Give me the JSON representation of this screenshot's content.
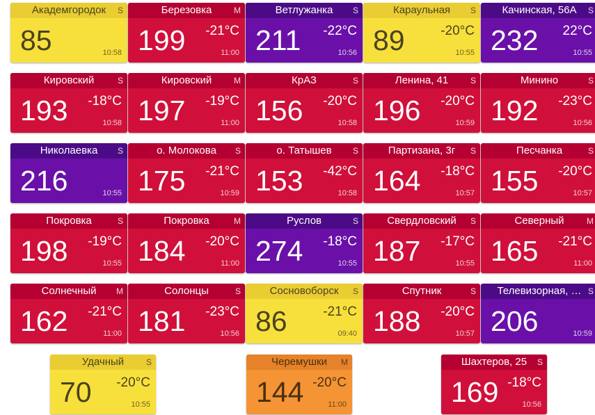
{
  "tiles": [
    {
      "name": "Академгородок",
      "badge": "S",
      "aqi": 85,
      "temp": null,
      "time": "10:58",
      "color": "yellow"
    },
    {
      "name": "Березовка",
      "badge": "M",
      "aqi": 199,
      "temp": "-21°C",
      "time": "11:00",
      "color": "red"
    },
    {
      "name": "Ветлужанка",
      "badge": "S",
      "aqi": 211,
      "temp": "-22°C",
      "time": "10:56",
      "color": "purple"
    },
    {
      "name": "Караульная",
      "badge": "S",
      "aqi": 89,
      "temp": "-20°C",
      "time": "10:55",
      "color": "yellow"
    },
    {
      "name": "Качинская, 56А",
      "badge": "S",
      "aqi": 232,
      "temp": "22°C",
      "time": "10:55",
      "color": "purple"
    },
    {
      "name": "Кировский",
      "badge": "S",
      "aqi": 193,
      "temp": "-18°C",
      "time": "10:58",
      "color": "red"
    },
    {
      "name": "Кировский",
      "badge": "M",
      "aqi": 197,
      "temp": "-19°C",
      "time": "11:00",
      "color": "red"
    },
    {
      "name": "КрАЗ",
      "badge": "S",
      "aqi": 156,
      "temp": "-20°C",
      "time": "10:58",
      "color": "red"
    },
    {
      "name": "Ленина, 41",
      "badge": "S",
      "aqi": 196,
      "temp": "-20°C",
      "time": "10:59",
      "color": "red"
    },
    {
      "name": "Минино",
      "badge": "S",
      "aqi": 192,
      "temp": "-23°C",
      "time": "10:56",
      "color": "red"
    },
    {
      "name": "Николаевка",
      "badge": "S",
      "aqi": 216,
      "temp": null,
      "time": "10:55",
      "color": "purple"
    },
    {
      "name": "о. Молокова",
      "badge": "S",
      "aqi": 175,
      "temp": "-21°C",
      "time": "10:59",
      "color": "red"
    },
    {
      "name": "о. Татышев",
      "badge": "S",
      "aqi": 153,
      "temp": "-42°C",
      "time": "10:58",
      "color": "red"
    },
    {
      "name": "Партизана, 3г",
      "badge": "S",
      "aqi": 164,
      "temp": "-18°C",
      "time": "10:57",
      "color": "red"
    },
    {
      "name": "Песчанка",
      "badge": "S",
      "aqi": 155,
      "temp": "-20°C",
      "time": "10:57",
      "color": "red"
    },
    {
      "name": "Покровка",
      "badge": "S",
      "aqi": 198,
      "temp": "-19°C",
      "time": "10:55",
      "color": "red"
    },
    {
      "name": "Покровка",
      "badge": "M",
      "aqi": 184,
      "temp": "-20°C",
      "time": "11:00",
      "color": "red"
    },
    {
      "name": "Руслов",
      "badge": "S",
      "aqi": 274,
      "temp": "-18°C",
      "time": "10:55",
      "color": "purple"
    },
    {
      "name": "Свердловский",
      "badge": "S",
      "aqi": 187,
      "temp": "-17°C",
      "time": "10:55",
      "color": "red"
    },
    {
      "name": "Северный",
      "badge": "M",
      "aqi": 165,
      "temp": "-21°C",
      "time": "11:00",
      "color": "red"
    },
    {
      "name": "Солнечный",
      "badge": "M",
      "aqi": 162,
      "temp": "-21°C",
      "time": "11:00",
      "color": "red"
    },
    {
      "name": "Солонцы",
      "badge": "S",
      "aqi": 181,
      "temp": "-23°C",
      "time": "10:56",
      "color": "red"
    },
    {
      "name": "Сосновоборск",
      "badge": "S",
      "aqi": 86,
      "temp": "-21°C",
      "time": "09:40",
      "color": "yellow"
    },
    {
      "name": "Спутник",
      "badge": "S",
      "aqi": 188,
      "temp": "-20°C",
      "time": "10:57",
      "color": "red"
    },
    {
      "name": "Телевизорная, …",
      "badge": "S",
      "aqi": 206,
      "temp": null,
      "time": "10:59",
      "color": "purple"
    },
    {
      "name": "Удачный",
      "badge": "S",
      "aqi": 70,
      "temp": "-20°C",
      "time": "10:55",
      "color": "yellow"
    },
    {
      "name": "Черемушки",
      "badge": "M",
      "aqi": 144,
      "temp": "-20°C",
      "time": "11:00",
      "color": "orange"
    },
    {
      "name": "Шахтеров, 25",
      "badge": "S",
      "aqi": 169,
      "temp": "-18°C",
      "time": "10:56",
      "color": "red"
    }
  ]
}
